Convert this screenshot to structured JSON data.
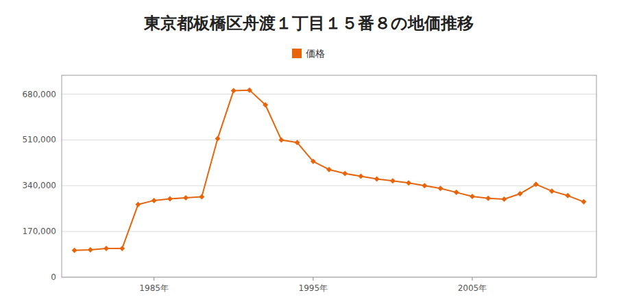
{
  "chart_data": {
    "type": "line",
    "title": "東京都板橋区舟渡１丁目１５番８の地価推移",
    "x": [
      1980,
      1981,
      1982,
      1983,
      1984,
      1985,
      1986,
      1987,
      1988,
      1989,
      1990,
      1991,
      1992,
      1993,
      1994,
      1995,
      1996,
      1997,
      1998,
      1999,
      2000,
      2001,
      2002,
      2003,
      2004,
      2005,
      2006,
      2007,
      2008,
      2009,
      2010,
      2011,
      2012
    ],
    "series": [
      {
        "name": "価格",
        "color": "#e8640a",
        "marker": "diamond",
        "values": [
          100000,
          102000,
          107000,
          107000,
          270000,
          285000,
          291000,
          295000,
          299000,
          515000,
          693000,
          695000,
          640000,
          510000,
          500000,
          430000,
          400000,
          385000,
          375000,
          365000,
          358000,
          350000,
          340000,
          330000,
          315000,
          300000,
          293000,
          290000,
          310000,
          345000,
          320000,
          303000,
          280000
        ]
      }
    ],
    "xlim": [
      1979.2,
      2012.8
    ],
    "xticks": [
      {
        "value": 1985,
        "label": "1985年"
      },
      {
        "value": 1995,
        "label": "1995年"
      },
      {
        "value": 2005,
        "label": "2005年"
      }
    ],
    "ylim": [
      0,
      750000
    ],
    "yticks": [
      0,
      {
        "value": 170000,
        "label": "170,000"
      },
      {
        "value": 340000,
        "label": "340,000"
      },
      {
        "value": 510000,
        "label": "510,000"
      },
      {
        "value": 680000,
        "label": "680,000"
      }
    ],
    "grid": true,
    "legend": "top"
  }
}
